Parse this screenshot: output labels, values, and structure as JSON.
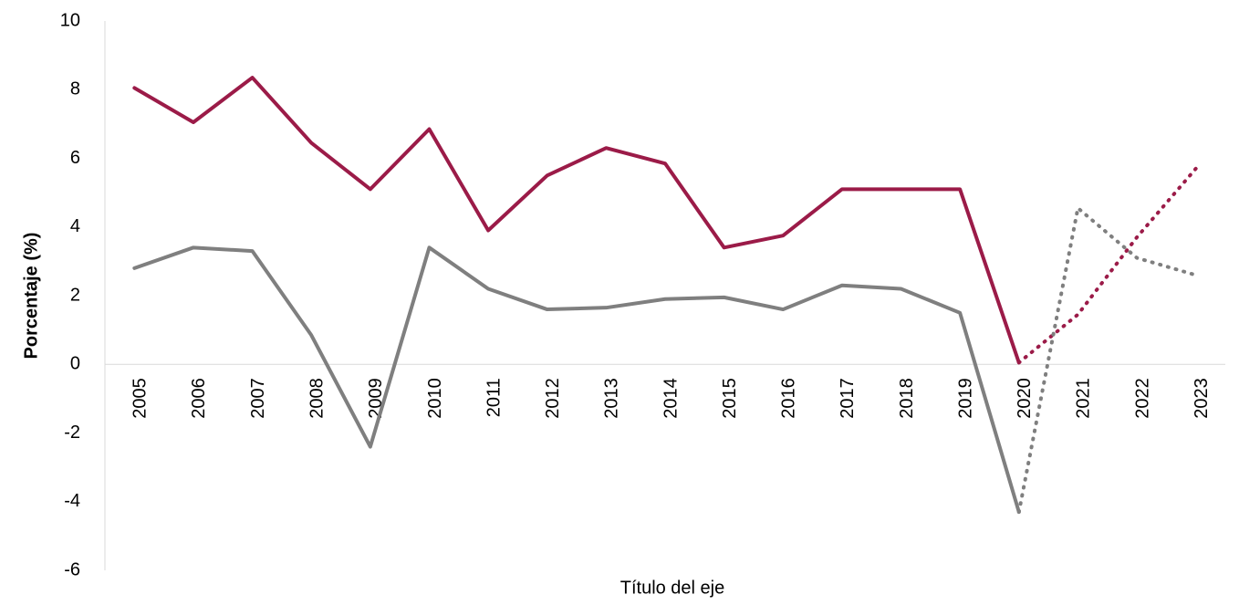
{
  "chart_data": {
    "type": "line",
    "categories": [
      "2005",
      "2006",
      "2007",
      "2008",
      "2009",
      "2010",
      "2011",
      "2012",
      "2013",
      "2014",
      "2015",
      "2016",
      "2017",
      "2018",
      "2019",
      "2020",
      "2021",
      "2022",
      "2023"
    ],
    "series": [
      {
        "color": "#9b1b48",
        "values": [
          8.05,
          7.05,
          8.35,
          6.45,
          5.1,
          6.85,
          3.9,
          5.5,
          6.3,
          5.85,
          3.4,
          3.75,
          5.1,
          5.1,
          5.1,
          0.05,
          1.45,
          3.7,
          5.7
        ]
      },
      {
        "color": "#7f7f7f",
        "values": [
          2.8,
          3.4,
          3.3,
          0.85,
          -2.4,
          3.4,
          2.2,
          1.6,
          1.65,
          1.9,
          1.95,
          1.6,
          2.3,
          2.2,
          1.5,
          -4.3,
          4.55,
          3.1,
          2.6
        ]
      }
    ],
    "projection_start": "2020",
    "ylim": [
      -6,
      10
    ],
    "yticks": [
      -6,
      -4,
      -2,
      0,
      2,
      4,
      6,
      8,
      10
    ],
    "ylabel": "Porcentaje (%)",
    "xlabel": "Título del eje",
    "grid": false
  }
}
